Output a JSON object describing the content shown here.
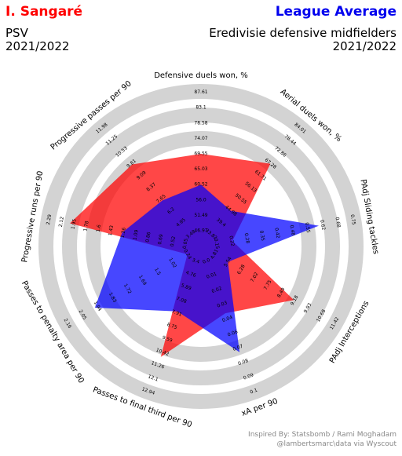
{
  "header": {
    "player_name": "I. Sangaré",
    "player_color": "#ff0000",
    "league_label": "League Average",
    "league_color": "#0000ee",
    "club": "PSV",
    "season_left": "2021/2022",
    "league_desc": "Eredivisie defensive midfielders",
    "season_right": "2021/2022"
  },
  "footer": {
    "credit_line1": "Inspired By: Statsbomb / Rami Moghadam",
    "credit_line2": "@lambertsmarc\\data via Wyscout"
  },
  "chart_data": {
    "type": "radar",
    "title": "",
    "ring_color": "#d3d3d3",
    "player_fill": "#ff0000",
    "league_fill": "#0000ff",
    "parameters": [
      {
        "label": "Defensive duels won, %",
        "ticks": [
          "46.97",
          "51.49",
          "56.0",
          "60.52",
          "65.03",
          "69.55",
          "74.07",
          "78.58",
          "83.1",
          "87.61"
        ],
        "player": 69.55,
        "league": 60.5
      },
      {
        "label": "Aerial duels won, %",
        "ticks": [
          "33.82",
          "39.4",
          "44.98",
          "50.55",
          "56.13",
          "61.71",
          "67.28",
          "72.86",
          "78.44",
          "84.01"
        ],
        "player": 67.28,
        "league": 44.98
      },
      {
        "label": "PAdj Sliding tackles",
        "ticks": [
          "0.15",
          "0.22",
          "0.28",
          "0.35",
          "0.42",
          "0.48",
          "0.55",
          "0.62",
          "0.68",
          "0.75"
        ],
        "player": 0.22,
        "league": 0.6
      },
      {
        "label": "PAdj Interceptions",
        "ticks": [
          "4.81",
          "5.54",
          "6.28",
          "7.02",
          "7.75",
          "8.49",
          "9.18",
          "9.93",
          "10.68",
          "11.42"
        ],
        "player": 9.18,
        "league": 5.54
      },
      {
        "label": "xA per 90",
        "ticks": [
          "0.0",
          "0.01",
          "0.02",
          "0.03",
          "0.04",
          "0.06",
          "0.07",
          "0.08",
          "0.09",
          "0.1"
        ],
        "player": 0.04,
        "league": 0.07
      },
      {
        "label": "Passes to final third per 90",
        "ticks": [
          "3.4",
          "4.76",
          "5.89",
          "7.08",
          "7.91",
          "8.75",
          "9.59",
          "10.42",
          "11.26",
          "12.1",
          "12.94"
        ],
        "player": 10.42,
        "league": 7.08
      },
      {
        "label": "Passes to penalty area per 90",
        "ticks": [
          "0.24",
          "1.02",
          "1.5",
          "1.69",
          "1.72",
          "1.83",
          "1.94",
          "2.05",
          "2.16"
        ],
        "player": 0.24,
        "league": 1.72
      },
      {
        "label": "Progressive runs per 90",
        "ticks": [
          "0.05",
          "0.52",
          "0.69",
          "0.86",
          "1.09",
          "1.26",
          "1.43",
          "1.6",
          "1.78",
          "1.95",
          "2.12",
          "2.29"
        ],
        "player": 1.95,
        "league": 1.09
      },
      {
        "label": "Progressive passes per 90",
        "ticks": [
          "3.48",
          "4.95",
          "6.2",
          "7.65",
          "8.37",
          "9.09",
          "9.81",
          "10.53",
          "11.25",
          "11.98"
        ],
        "player": 9.09,
        "league": 6.2
      }
    ]
  }
}
